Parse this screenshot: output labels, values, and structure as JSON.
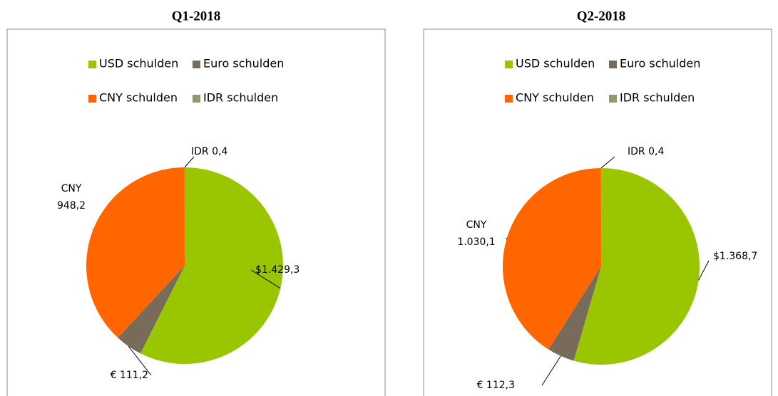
{
  "chart_data": [
    {
      "type": "pie",
      "title": "Q1-2018",
      "categories": [
        "USD schulden",
        "Euro schulden",
        "CNY schulden",
        "IDR schulden"
      ],
      "values": [
        1429.3,
        111.2,
        948.2,
        0.4
      ],
      "value_labels": [
        "$1.429,3",
        "€ 111,2",
        [
          "CNY",
          "948,2"
        ],
        "IDR 0,4"
      ],
      "colors": [
        "#99c600",
        "#786b5a",
        "#ff6600",
        "#8f9a6b"
      ]
    },
    {
      "type": "pie",
      "title": "Q2-2018",
      "categories": [
        "USD schulden",
        "Euro schulden",
        "CNY schulden",
        "IDR schulden"
      ],
      "values": [
        1368.7,
        112.3,
        1030.1,
        0.4
      ],
      "value_labels": [
        "$1.368,7",
        "€ 112,3",
        [
          "CNY",
          "1.030,1"
        ],
        "IDR 0,4"
      ],
      "colors": [
        "#99c600",
        "#786b5a",
        "#ff6600",
        "#8f9a6b"
      ]
    }
  ]
}
